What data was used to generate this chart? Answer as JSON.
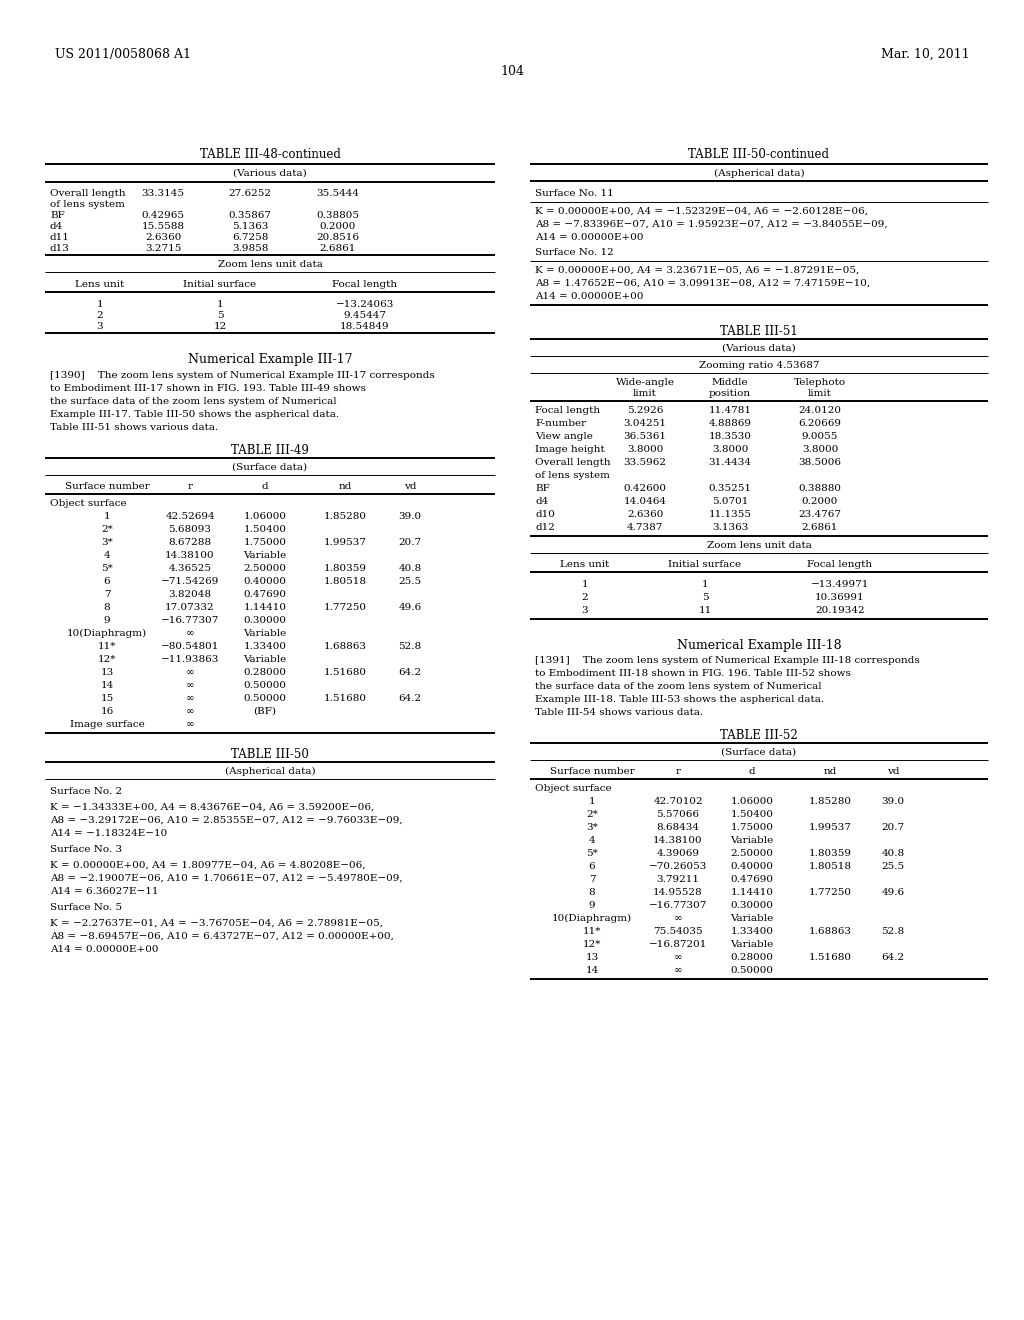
{
  "header_left": "US 2011/0058068 A1",
  "header_right": "Mar. 10, 2011",
  "page_number": "104",
  "background_color": "#ffffff",
  "left_column": {
    "table1_title": "TABLE III-48-continued",
    "table1_subtitle": "(Various data)",
    "table1_various_rows": [
      [
        "Overall length",
        "33.3145",
        "27.6252",
        "35.5444"
      ],
      [
        "of lens system",
        "",
        "",
        ""
      ],
      [
        "BF",
        "0.42965",
        "0.35867",
        "0.38805"
      ],
      [
        "d4",
        "15.5588",
        "5.1363",
        "0.2000"
      ],
      [
        "d11",
        "2.6360",
        "6.7258",
        "20.8516"
      ],
      [
        "d13",
        "3.2715",
        "3.9858",
        "2.6861"
      ]
    ],
    "table1_zoom_subtitle": "Zoom lens unit data",
    "table1_zoom_header": [
      "Lens unit",
      "Initial surface",
      "Focal length"
    ],
    "table1_zoom_rows": [
      [
        "1",
        "1",
        "−13.24063"
      ],
      [
        "2",
        "5",
        "9.45447"
      ],
      [
        "3",
        "12",
        "18.54849"
      ]
    ],
    "num_example_title": "Numerical Example III-17",
    "num_example_para": "[1390]    The zoom lens system of Numerical Example III-17 corresponds to Embodiment III-17 shown in FIG. 193. Table III-49 shows the surface data of the zoom lens system of Numerical Example III-17. Table III-50 shows the aspherical data. Table III-51 shows various data.",
    "table2_title": "TABLE III-49",
    "table2_subtitle": "(Surface data)",
    "table2_header": [
      "Surface number",
      "r",
      "d",
      "nd",
      "vd"
    ],
    "table2_rows": [
      [
        "Object surface",
        "",
        "",
        "",
        ""
      ],
      [
        "1",
        "42.52694",
        "1.06000",
        "1.85280",
        "39.0"
      ],
      [
        "2*",
        "5.68093",
        "1.50400",
        "",
        ""
      ],
      [
        "3*",
        "8.67288",
        "1.75000",
        "1.99537",
        "20.7"
      ],
      [
        "4",
        "14.38100",
        "Variable",
        "",
        ""
      ],
      [
        "5*",
        "4.36525",
        "2.50000",
        "1.80359",
        "40.8"
      ],
      [
        "6",
        "−71.54269",
        "0.40000",
        "1.80518",
        "25.5"
      ],
      [
        "7",
        "3.82048",
        "0.47690",
        "",
        ""
      ],
      [
        "8",
        "17.07332",
        "1.14410",
        "1.77250",
        "49.6"
      ],
      [
        "9",
        "−16.77307",
        "0.30000",
        "",
        ""
      ],
      [
        "10(Diaphragm)",
        "∞",
        "Variable",
        "",
        ""
      ],
      [
        "11*",
        "−80.54801",
        "1.33400",
        "1.68863",
        "52.8"
      ],
      [
        "12*",
        "−11.93863",
        "Variable",
        "",
        ""
      ],
      [
        "13",
        "∞",
        "0.28000",
        "1.51680",
        "64.2"
      ],
      [
        "14",
        "∞",
        "0.50000",
        "",
        ""
      ],
      [
        "15",
        "∞",
        "0.50000",
        "1.51680",
        "64.2"
      ],
      [
        "16",
        "∞",
        "(BF)",
        "",
        ""
      ],
      [
        "Image surface",
        "∞",
        "",
        "",
        ""
      ]
    ],
    "table3_title": "TABLE III-50",
    "table3_subtitle": "(Aspherical data)",
    "table3_blocks": [
      {
        "header": "Surface No. 2",
        "lines": [
          "K = −1.34333E+00, A4 = 8.43676E−04, A6 = 3.59200E−06,",
          "A8 = −3.29172E−06, A10 = 2.85355E−07, A12 = −9.76033E−09,",
          "A14 = −1.18324E−10"
        ]
      },
      {
        "header": "Surface No. 3",
        "lines": [
          "K = 0.00000E+00, A4 = 1.80977E−04, A6 = 4.80208E−06,",
          "A8 = −2.19007E−06, A10 = 1.70661E−07, A12 = −5.49780E−09,",
          "A14 = 6.36027E−11"
        ]
      },
      {
        "header": "Surface No. 5",
        "lines": [
          "K = −2.27637E−01, A4 = −3.76705E−04, A6 = 2.78981E−05,",
          "A8 = −8.69457E−06, A10 = 6.43727E−07, A12 = 0.00000E+00,",
          "A14 = 0.00000E+00"
        ]
      }
    ]
  },
  "right_column": {
    "table4_title": "TABLE III-50-continued",
    "table4_subtitle": "(Aspherical data)",
    "table4_blocks": [
      {
        "header": "Surface No. 11",
        "lines": [
          "K = 0.00000E+00, A4 = −1.52329E−04, A6 = −2.60128E−06,",
          "A8 = −7.83396E−07, A10 = 1.95923E−07, A12 = −3.84055E−09,",
          "A14 = 0.00000E+00"
        ]
      },
      {
        "header": "Surface No. 12",
        "lines": [
          "K = 0.00000E+00, A4 = 3.23671E−05, A6 = −1.87291E−05,",
          "A8 = 1.47652E−06, A10 = 3.09913E−08, A12 = 7.47159E−10,",
          "A14 = 0.00000E+00"
        ]
      }
    ],
    "table5_title": "TABLE III-51",
    "table5_subtitle": "(Various data)",
    "table5_zoom_ratio": "Zooming ratio 4.53687",
    "table5_col_headers": [
      "",
      "Wide-angle\nlimit",
      "Middle\nposition",
      "Telephoto\nlimit"
    ],
    "table5_rows": [
      [
        "Focal length",
        "5.2926",
        "11.4781",
        "24.0120"
      ],
      [
        "F-number",
        "3.04251",
        "4.88869",
        "6.20669"
      ],
      [
        "View angle",
        "36.5361",
        "18.3530",
        "9.0055"
      ],
      [
        "Image height",
        "3.8000",
        "3.8000",
        "3.8000"
      ],
      [
        "Overall length",
        "33.5962",
        "31.4434",
        "38.5006"
      ],
      [
        "of lens system",
        "",
        "",
        ""
      ],
      [
        "BF",
        "0.42600",
        "0.35251",
        "0.38880"
      ],
      [
        "d4",
        "14.0464",
        "5.0701",
        "0.2000"
      ],
      [
        "d10",
        "2.6360",
        "11.1355",
        "23.4767"
      ],
      [
        "d12",
        "4.7387",
        "3.1363",
        "2.6861"
      ]
    ],
    "table5_zoom_subtitle": "Zoom lens unit data",
    "table5_zoom_header": [
      "Lens unit",
      "Initial surface",
      "Focal length"
    ],
    "table5_zoom_rows": [
      [
        "1",
        "1",
        "−13.49971"
      ],
      [
        "2",
        "5",
        "10.36991"
      ],
      [
        "3",
        "11",
        "20.19342"
      ]
    ],
    "num_example2_title": "Numerical Example III-18",
    "num_example2_para": "[1391]    The zoom lens system of Numerical Example III-18 corresponds to Embodiment III-18 shown in FIG. 196. Table III-52 shows the surface data of the zoom lens system of Numerical Example III-18. Table III-53 shows the aspherical data. Table III-54 shows various data.",
    "table6_title": "TABLE III-52",
    "table6_subtitle": "(Surface data)",
    "table6_header": [
      "Surface number",
      "r",
      "d",
      "nd",
      "vd"
    ],
    "table6_rows": [
      [
        "Object surface",
        "",
        "",
        "",
        ""
      ],
      [
        "1",
        "42.70102",
        "1.06000",
        "1.85280",
        "39.0"
      ],
      [
        "2*",
        "5.57066",
        "1.50400",
        "",
        ""
      ],
      [
        "3*",
        "8.68434",
        "1.75000",
        "1.99537",
        "20.7"
      ],
      [
        "4",
        "14.38100",
        "Variable",
        "",
        ""
      ],
      [
        "5*",
        "4.39069",
        "2.50000",
        "1.80359",
        "40.8"
      ],
      [
        "6",
        "−70.26053",
        "0.40000",
        "1.80518",
        "25.5"
      ],
      [
        "7",
        "3.79211",
        "0.47690",
        "",
        ""
      ],
      [
        "8",
        "14.95528",
        "1.14410",
        "1.77250",
        "49.6"
      ],
      [
        "9",
        "−16.77307",
        "0.30000",
        "",
        ""
      ],
      [
        "10(Diaphragm)",
        "∞",
        "Variable",
        "",
        ""
      ],
      [
        "11*",
        "75.54035",
        "1.33400",
        "1.68863",
        "52.8"
      ],
      [
        "12*",
        "−16.87201",
        "Variable",
        "",
        ""
      ],
      [
        "13",
        "∞",
        "0.28000",
        "1.51680",
        "64.2"
      ],
      [
        "14",
        "∞",
        "0.50000",
        "",
        ""
      ]
    ]
  }
}
